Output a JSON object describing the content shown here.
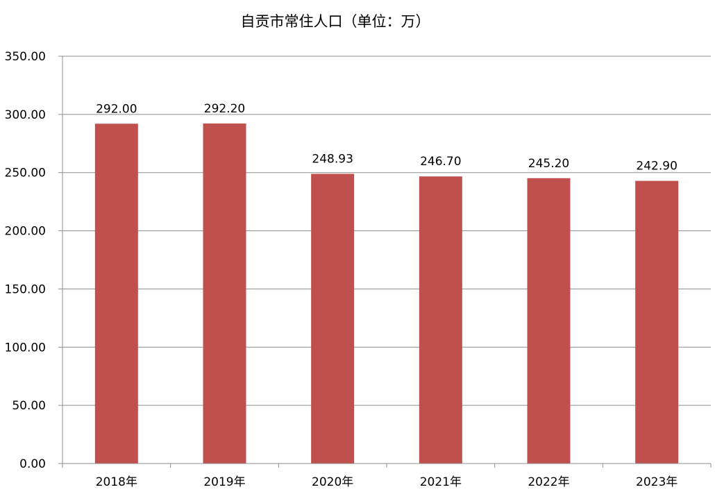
{
  "chart_data": {
    "type": "bar",
    "title": "自贡市常住人口（单位：万）",
    "xlabel": "",
    "ylabel": "",
    "categories": [
      "2018年",
      "2019年",
      "2020年",
      "2021年",
      "2022年",
      "2023年"
    ],
    "values": [
      292.0,
      292.2,
      248.93,
      246.7,
      245.2,
      242.9
    ],
    "data_labels": [
      "292.00",
      "292.20",
      "248.93",
      "246.70",
      "245.20",
      "242.90"
    ],
    "ylim": [
      0,
      350
    ],
    "yticks": [
      0,
      50,
      100,
      150,
      200,
      250,
      300,
      350
    ],
    "ytick_labels": [
      "0.00",
      "50.00",
      "100.00",
      "150.00",
      "200.00",
      "250.00",
      "300.00",
      "350.00"
    ],
    "grid": true,
    "legend": "none",
    "bar_color": "#c0504d"
  }
}
